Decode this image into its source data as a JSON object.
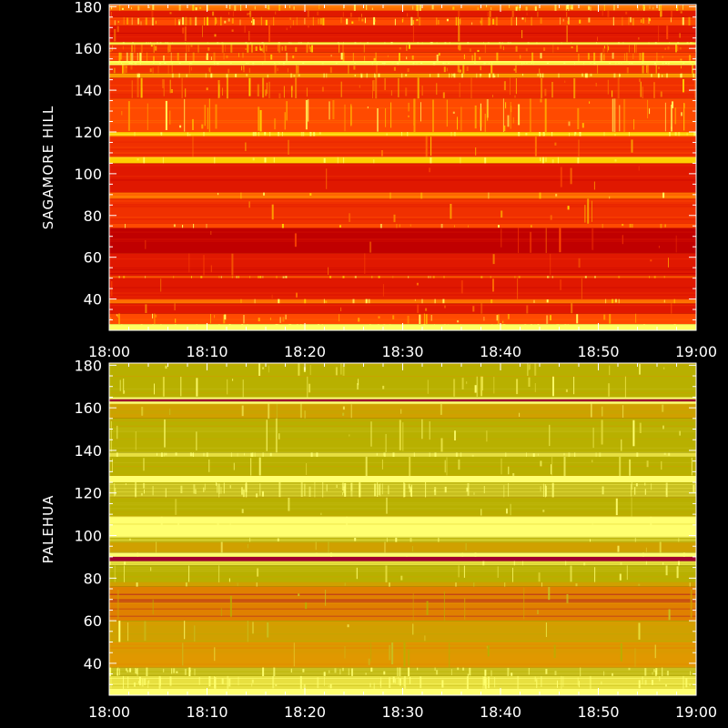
{
  "chart_data": [
    {
      "type": "heatmap",
      "ylabel": "SAGAMORE HILL",
      "xlim": [
        "18:00",
        "19:00"
      ],
      "ylim": [
        25,
        181
      ],
      "xticks": [
        "18:00",
        "18:10",
        "18:20",
        "18:30",
        "18:40",
        "18:50",
        "19:00"
      ],
      "yticks": [
        40,
        60,
        80,
        100,
        120,
        140,
        160,
        180
      ],
      "palette": [
        "#c00000",
        "#e01800",
        "#f03000",
        "#ff4a00",
        "#ff7000",
        "#ffa000",
        "#ffd000",
        "#ffff60"
      ],
      "bands": [
        {
          "y0": 25,
          "y1": 28,
          "level": 7,
          "speckle": 0.5
        },
        {
          "y0": 28,
          "y1": 33,
          "level": 3,
          "speckle": 0.18
        },
        {
          "y0": 33,
          "y1": 38,
          "level": 1,
          "speckle": 0.05
        },
        {
          "y0": 38,
          "y1": 40,
          "level": 4,
          "speckle": 0.1
        },
        {
          "y0": 40,
          "y1": 50,
          "level": 1,
          "speckle": 0.05
        },
        {
          "y0": 50,
          "y1": 51,
          "level": 3,
          "speckle": 0.2
        },
        {
          "y0": 51,
          "y1": 62,
          "level": 1,
          "speckle": 0.05
        },
        {
          "y0": 62,
          "y1": 74,
          "level": 0,
          "speckle": 0.06
        },
        {
          "y0": 74,
          "y1": 76,
          "level": 3,
          "speckle": 0.1
        },
        {
          "y0": 76,
          "y1": 88,
          "level": 2,
          "speckle": 0.05
        },
        {
          "y0": 88,
          "y1": 91,
          "level": 4,
          "speckle": 0.05
        },
        {
          "y0": 91,
          "y1": 105,
          "level": 1,
          "speckle": 0.03
        },
        {
          "y0": 105,
          "y1": 108,
          "level": 6,
          "speckle": 0.1
        },
        {
          "y0": 108,
          "y1": 118,
          "level": 2,
          "speckle": 0.05
        },
        {
          "y0": 118,
          "y1": 120,
          "level": 6,
          "speckle": 0.2
        },
        {
          "y0": 120,
          "y1": 136,
          "level": 3,
          "speckle": 0.35
        },
        {
          "y0": 136,
          "y1": 146,
          "level": 2,
          "speckle": 0.3
        },
        {
          "y0": 146,
          "y1": 148,
          "level": 5,
          "speckle": 0.3
        },
        {
          "y0": 148,
          "y1": 152,
          "level": 2,
          "speckle": 0.25
        },
        {
          "y0": 152,
          "y1": 154,
          "level": 7,
          "speckle": 0.4
        },
        {
          "y0": 154,
          "y1": 158,
          "level": 3,
          "speckle": 0.3
        },
        {
          "y0": 158,
          "y1": 162,
          "level": 2,
          "speckle": 0.35
        },
        {
          "y0": 162,
          "y1": 163,
          "level": 7,
          "speckle": 0.3
        },
        {
          "y0": 163,
          "y1": 171,
          "level": 1,
          "speckle": 0.1
        },
        {
          "y0": 171,
          "y1": 175,
          "level": 3,
          "speckle": 0.45
        },
        {
          "y0": 175,
          "y1": 178,
          "level": 1,
          "speckle": 0.15
        },
        {
          "y0": 178,
          "y1": 181,
          "level": 4,
          "speckle": 0.3
        }
      ]
    },
    {
      "type": "heatmap",
      "ylabel": "PALEHUA",
      "xlim": [
        "18:00",
        "19:00"
      ],
      "ylim": [
        25,
        181
      ],
      "xticks": [
        "18:00",
        "18:10",
        "18:20",
        "18:30",
        "18:40",
        "18:50",
        "19:00"
      ],
      "yticks": [
        40,
        60,
        80,
        100,
        120,
        140,
        160,
        180
      ],
      "palette": [
        "#a00030",
        "#e08000",
        "#e09800",
        "#d0a000",
        "#b8b000",
        "#c8c020",
        "#e8e040",
        "#ffff70"
      ],
      "bands": [
        {
          "y0": 25,
          "y1": 28,
          "level": 7,
          "speckle": 0.4
        },
        {
          "y0": 28,
          "y1": 34,
          "level": 6,
          "speckle": 0.35
        },
        {
          "y0": 34,
          "y1": 38,
          "level": 5,
          "speckle": 0.3
        },
        {
          "y0": 38,
          "y1": 50,
          "level": 2,
          "speckle": 0.08
        },
        {
          "y0": 50,
          "y1": 60,
          "level": 3,
          "speckle": 0.06
        },
        {
          "y0": 60,
          "y1": 76,
          "level": 1,
          "speckle": 0.08
        },
        {
          "y0": 76,
          "y1": 78,
          "level": 3,
          "speckle": 0.06
        },
        {
          "y0": 78,
          "y1": 86,
          "level": 4,
          "speckle": 0.1
        },
        {
          "y0": 86,
          "y1": 88,
          "level": 6,
          "speckle": 0.05
        },
        {
          "y0": 88,
          "y1": 90,
          "level": 0,
          "speckle": 0
        },
        {
          "y0": 90,
          "y1": 92,
          "level": 7,
          "speckle": 0.05
        },
        {
          "y0": 92,
          "y1": 97,
          "level": 3,
          "speckle": 0.05
        },
        {
          "y0": 97,
          "y1": 99,
          "level": 5,
          "speckle": 0.05
        },
        {
          "y0": 99,
          "y1": 109,
          "level": 7,
          "speckle": 0.05
        },
        {
          "y0": 109,
          "y1": 118,
          "level": 4,
          "speckle": 0.05
        },
        {
          "y0": 118,
          "y1": 125,
          "level": 5,
          "speckle": 0.4
        },
        {
          "y0": 125,
          "y1": 128,
          "level": 7,
          "speckle": 0.1
        },
        {
          "y0": 128,
          "y1": 137,
          "level": 4,
          "speckle": 0.12
        },
        {
          "y0": 137,
          "y1": 139,
          "level": 6,
          "speckle": 0.2
        },
        {
          "y0": 139,
          "y1": 155,
          "level": 4,
          "speckle": 0.12
        },
        {
          "y0": 155,
          "y1": 162,
          "level": 3,
          "speckle": 0.08
        },
        {
          "y0": 162,
          "y1": 163,
          "level": 7,
          "speckle": 0
        },
        {
          "y0": 163,
          "y1": 164,
          "level": 0,
          "speckle": 0
        },
        {
          "y0": 164,
          "y1": 165,
          "level": 7,
          "speckle": 0
        },
        {
          "y0": 165,
          "y1": 175,
          "level": 4,
          "speckle": 0.15
        },
        {
          "y0": 175,
          "y1": 181,
          "level": 4,
          "speckle": 0.08
        }
      ]
    }
  ]
}
